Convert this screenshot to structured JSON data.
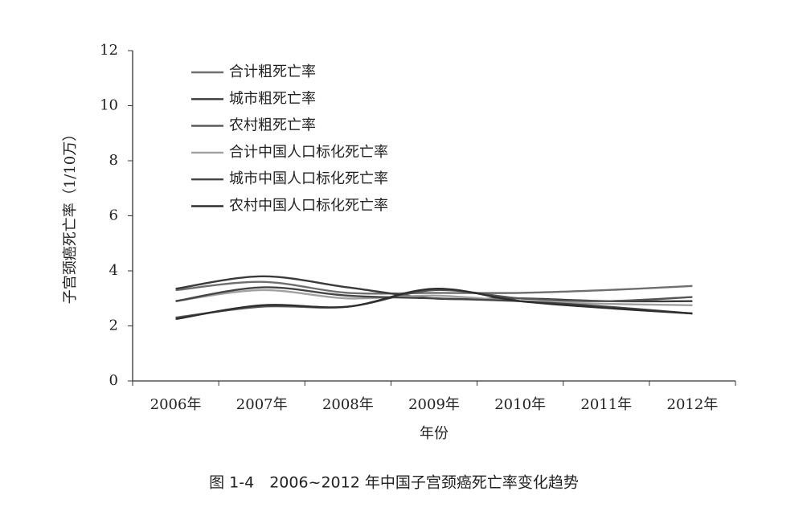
{
  "chart_data": {
    "type": "line",
    "y_label": "子宫颈癌死亡率（1/10万）",
    "x_label": "年份",
    "caption": "图 1-4　2006~2012 年中国子宫颈癌死亡率变化趋势",
    "categories": [
      "2006年",
      "2007年",
      "2008年",
      "2009年",
      "2010年",
      "2011年",
      "2012年"
    ],
    "series": [
      {
        "name": "合计粗死亡率",
        "color": "#6e6e6e",
        "values": [
          3.3,
          3.6,
          3.2,
          3.2,
          3.2,
          3.3,
          3.45
        ]
      },
      {
        "name": "城市粗死亡率",
        "color": "#3a3a3a",
        "values": [
          3.35,
          3.8,
          3.4,
          3.0,
          3.0,
          2.9,
          2.9
        ]
      },
      {
        "name": "农村粗死亡率",
        "color": "#555555",
        "values": [
          2.3,
          2.7,
          2.7,
          3.3,
          3.0,
          2.9,
          3.05
        ]
      },
      {
        "name": "合计中国人口标化死亡率",
        "color": "#a0a0a0",
        "values": [
          2.9,
          3.3,
          3.0,
          3.1,
          2.9,
          2.8,
          2.75
        ]
      },
      {
        "name": "城市中国人口标化死亡率",
        "color": "#444444",
        "values": [
          2.9,
          3.4,
          3.1,
          3.0,
          2.9,
          2.7,
          2.45
        ]
      },
      {
        "name": "农村中国人口标化死亡率",
        "color": "#2e2e2e",
        "values": [
          2.25,
          2.75,
          2.7,
          3.35,
          2.9,
          2.65,
          2.45
        ]
      }
    ],
    "ylim": [
      0,
      12
    ],
    "yticks": [
      0,
      2,
      4,
      6,
      8,
      10,
      12
    ],
    "grid": false
  }
}
